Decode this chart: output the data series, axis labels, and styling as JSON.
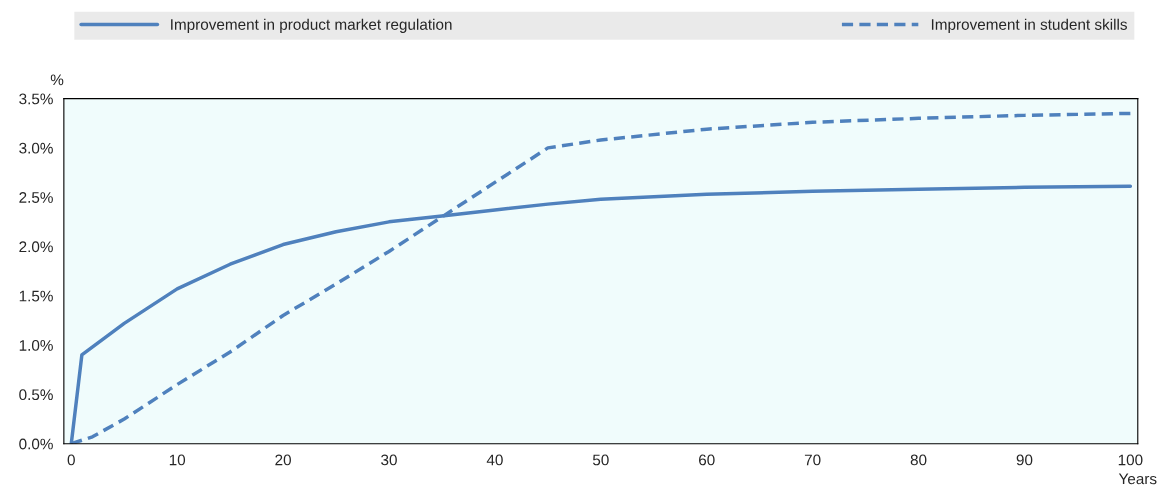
{
  "chart_data": {
    "type": "line",
    "xlabel": "Years",
    "ylabel": "%",
    "xlim": [
      -0.7,
      100.7
    ],
    "ylim": [
      0,
      3.5
    ],
    "xticks": [
      0,
      10,
      20,
      30,
      40,
      50,
      60,
      70,
      80,
      90,
      100
    ],
    "yticks": [
      {
        "value": 0,
        "label": "0.0%"
      },
      {
        "value": 0.5,
        "label": "0.5%"
      },
      {
        "value": 1,
        "label": "1.0%"
      },
      {
        "value": 1.5,
        "label": "1.5%"
      },
      {
        "value": 2,
        "label": "2.0%"
      },
      {
        "value": 2.5,
        "label": "2.5%"
      },
      {
        "value": 3,
        "label": "3.0%"
      },
      {
        "value": 3.5,
        "label": "3.5%"
      }
    ],
    "grid": false,
    "legend": "top",
    "marker": "none",
    "series": [
      {
        "name": "Improvement in product market regulation",
        "color": "#4f81bd",
        "line_style": "solid",
        "x": [
          0,
          1,
          5,
          10,
          15,
          20,
          25,
          30,
          35,
          40,
          45,
          50,
          60,
          70,
          80,
          90,
          100
        ],
        "values": [
          0,
          0.9,
          1.22,
          1.57,
          1.82,
          2.02,
          2.15,
          2.25,
          2.31,
          2.37,
          2.43,
          2.48,
          2.53,
          2.56,
          2.58,
          2.6,
          2.61
        ]
      },
      {
        "name": "Improvement in student skills",
        "color": "#4f81bd",
        "line_style": "dashed",
        "x": [
          0,
          2,
          5,
          10,
          15,
          20,
          25,
          30,
          35,
          40,
          45,
          50,
          60,
          70,
          80,
          90,
          100
        ],
        "values": [
          0,
          0.07,
          0.25,
          0.6,
          0.93,
          1.3,
          1.62,
          1.95,
          2.3,
          2.65,
          3.0,
          3.08,
          3.19,
          3.26,
          3.3,
          3.33,
          3.35
        ]
      }
    ]
  }
}
